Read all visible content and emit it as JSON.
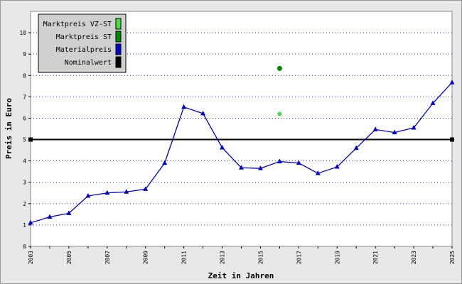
{
  "chart_data": {
    "type": "line",
    "title": "",
    "xlabel": "Zeit in Jahren",
    "ylabel": "Preis in Euro",
    "xlim": [
      2003,
      2025
    ],
    "ylim": [
      0,
      11
    ],
    "x_ticks": [
      "2003",
      "2005",
      "2007",
      "2009",
      "2011",
      "2013",
      "2015",
      "2017",
      "2019",
      "2021",
      "2023",
      "2025"
    ],
    "y_ticks": [
      "0",
      "1",
      "2",
      "3",
      "4",
      "5",
      "6",
      "7",
      "8",
      "9",
      "10"
    ],
    "grid": "horizontal dotted",
    "legend_position": "top-left",
    "series": [
      {
        "name": "Marktpreis VZ-ST",
        "color": "#44dd44",
        "marker": "circle",
        "points": [
          {
            "x": 2016,
            "y": 6.2
          }
        ]
      },
      {
        "name": "Marktpreis ST",
        "color": "#008800",
        "marker": "circle",
        "points": [
          {
            "x": 2016,
            "y": 8.33
          }
        ]
      },
      {
        "name": "Materialpreis",
        "color": "#0000cc",
        "marker": "triangle",
        "points": [
          {
            "x": 2003,
            "y": 1.1
          },
          {
            "x": 2004,
            "y": 1.38
          },
          {
            "x": 2005,
            "y": 1.55
          },
          {
            "x": 2006,
            "y": 2.36
          },
          {
            "x": 2007,
            "y": 2.5
          },
          {
            "x": 2008,
            "y": 2.55
          },
          {
            "x": 2009,
            "y": 2.68
          },
          {
            "x": 2010,
            "y": 3.9
          },
          {
            "x": 2011,
            "y": 6.52
          },
          {
            "x": 2012,
            "y": 6.22
          },
          {
            "x": 2013,
            "y": 4.62
          },
          {
            "x": 2014,
            "y": 3.68
          },
          {
            "x": 2015,
            "y": 3.65
          },
          {
            "x": 2016,
            "y": 3.97
          },
          {
            "x": 2017,
            "y": 3.9
          },
          {
            "x": 2018,
            "y": 3.42
          },
          {
            "x": 2019,
            "y": 3.72
          },
          {
            "x": 2020,
            "y": 4.6
          },
          {
            "x": 2021,
            "y": 5.47
          },
          {
            "x": 2022,
            "y": 5.33
          },
          {
            "x": 2023,
            "y": 5.55
          },
          {
            "x": 2024,
            "y": 6.7
          },
          {
            "x": 2025,
            "y": 7.67
          }
        ]
      },
      {
        "name": "Nominalwert",
        "color": "#000000",
        "marker": "square",
        "points": [
          {
            "x": 2003,
            "y": 5
          },
          {
            "x": 2025,
            "y": 5
          }
        ]
      }
    ]
  }
}
